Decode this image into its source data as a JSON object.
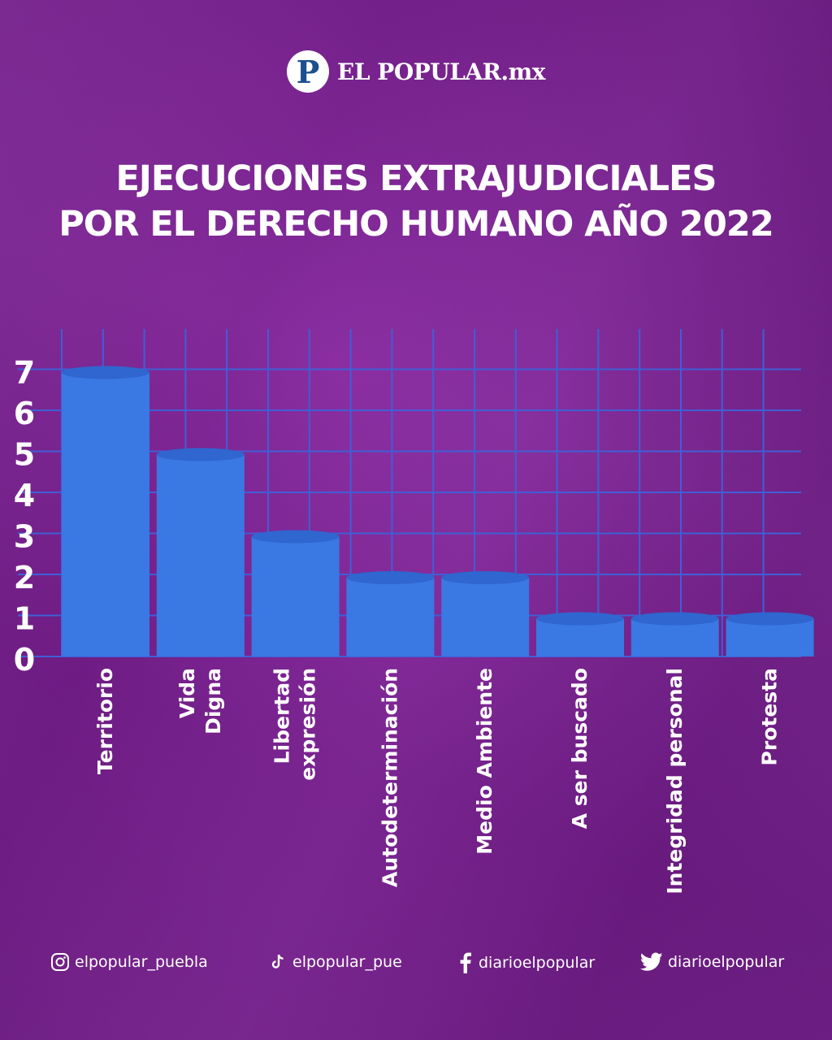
{
  "brand": {
    "logo_letter": "P",
    "name": "EL POPULAR.mx"
  },
  "title": {
    "line1": "EJECUCIONES EXTRAJUDICIALES",
    "line2": "POR EL DERECHO HUMANO AÑO 2022"
  },
  "colors": {
    "background": "#7a1f92",
    "bar": "#3a78e4",
    "bar_top": "#2f66cf",
    "grid": "#3f5fd6",
    "text": "#ffffff"
  },
  "chart_data": {
    "type": "bar",
    "categories": [
      "Territorio",
      "Vida Digna",
      "Libertad expresión",
      "Autodeterminación",
      "Medio Ambiente",
      "A ser buscado",
      "Integridad personal",
      "Protesta"
    ],
    "category_lines": [
      [
        "Territorio"
      ],
      [
        "Vida",
        "Digna"
      ],
      [
        "Libertad",
        "expresión"
      ],
      [
        "Autodeterminación"
      ],
      [
        "Medio Ambiente"
      ],
      [
        "A ser buscado"
      ],
      [
        "Integridad personal"
      ],
      [
        "Protesta"
      ]
    ],
    "values": [
      7,
      5,
      3,
      2,
      2,
      1,
      1,
      1
    ],
    "yticks": [
      0,
      1,
      2,
      3,
      4,
      5,
      6,
      7
    ],
    "ylim": [
      0,
      8
    ],
    "grid": true,
    "title": "EJECUCIONES EXTRAJUDICIALES POR EL DERECHO HUMANO AÑO 2022"
  },
  "footer": {
    "instagram": {
      "icon": "instagram-icon",
      "handle": "elpopular_puebla"
    },
    "tiktok": {
      "icon": "tiktok-icon",
      "handle": "elpopular_pue"
    },
    "facebook": {
      "icon": "facebook-icon",
      "handle": "diarioelpopular"
    },
    "twitter": {
      "icon": "twitter-icon",
      "handle": "diarioelpopular"
    }
  }
}
